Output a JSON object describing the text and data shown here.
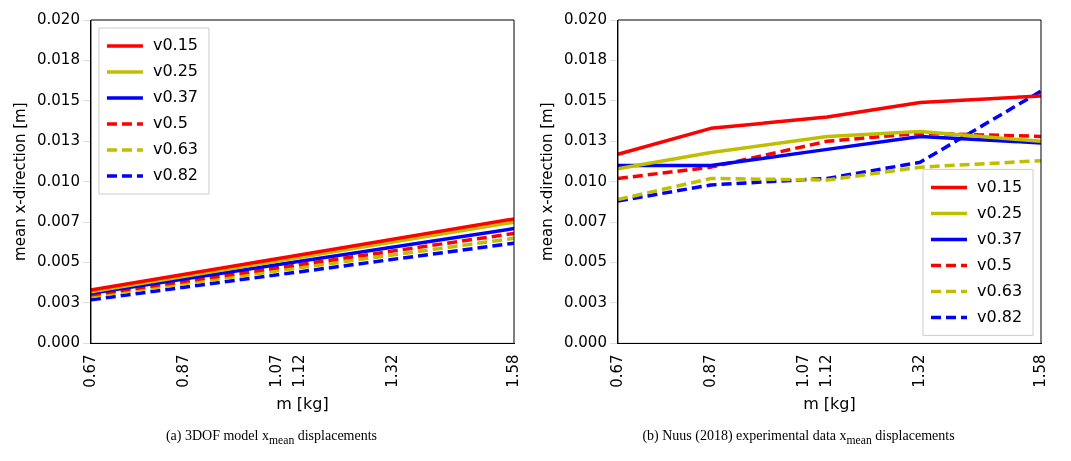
{
  "chart_data": [
    {
      "type": "line",
      "xlabel": "m [kg]",
      "ylabel": "mean x-direction [m]",
      "annotations": [
        "(a) 3DOF model x$_{mean}$ displacements"
      ],
      "x": [
        0.67,
        1.58
      ],
      "xlim": [
        0.67,
        1.58
      ],
      "xticks": [
        0.67,
        0.87,
        1.07,
        1.12,
        1.32,
        1.58
      ],
      "ylim": [
        0,
        0.02
      ],
      "yticks": [
        {
          "value": 0,
          "label": "0.000"
        },
        {
          "value": 0.0025,
          "label": "0.003"
        },
        {
          "value": 0.005,
          "label": "0.005"
        },
        {
          "value": 0.0075,
          "label": "0.007"
        },
        {
          "value": 0.01,
          "label": "0.010"
        },
        {
          "value": 0.0125,
          "label": "0.013"
        },
        {
          "value": 0.015,
          "label": "0.015"
        },
        {
          "value": 0.0175,
          "label": "0.018"
        },
        {
          "value": 0.02,
          "label": "0.020"
        }
      ],
      "legend": "top left",
      "grid": false,
      "series": [
        {
          "name": "v0.15",
          "color": "#ff0000",
          "line_style": "solid",
          "values": [
            0.0033,
            0.0077
          ]
        },
        {
          "name": "v0.25",
          "color": "#bfbf00",
          "line_style": "solid",
          "values": [
            0.0032,
            0.0075
          ]
        },
        {
          "name": "v0.37",
          "color": "#0000ff",
          "line_style": "solid",
          "values": [
            0.0031,
            0.0071
          ]
        },
        {
          "name": "v0.5",
          "color": "#ff0000",
          "line_style": "dashed",
          "values": [
            0.003,
            0.0068
          ]
        },
        {
          "name": "v0.63",
          "color": "#bfbf00",
          "line_style": "dashed",
          "values": [
            0.0029,
            0.0065
          ]
        },
        {
          "name": "v0.82",
          "color": "#0000ff",
          "line_style": "dashed",
          "values": [
            0.0027,
            0.0062
          ]
        }
      ]
    },
    {
      "type": "line",
      "xlabel": "m [kg]",
      "ylabel": "mean x-direction [m]",
      "annotations": [
        "(b) Nuus (2018) experimental data x$_{mean}$ displacements"
      ],
      "x": [
        0.67,
        0.87,
        1.12,
        1.32,
        1.58
      ],
      "xlim": [
        0.67,
        1.58
      ],
      "xticks": [
        0.67,
        0.87,
        1.07,
        1.12,
        1.32,
        1.58
      ],
      "ylim": [
        0,
        0.02
      ],
      "yticks": [
        {
          "value": 0,
          "label": "0.000"
        },
        {
          "value": 0.0025,
          "label": "0.003"
        },
        {
          "value": 0.005,
          "label": "0.005"
        },
        {
          "value": 0.0075,
          "label": "0.007"
        },
        {
          "value": 0.01,
          "label": "0.010"
        },
        {
          "value": 0.0125,
          "label": "0.013"
        },
        {
          "value": 0.015,
          "label": "0.015"
        },
        {
          "value": 0.0175,
          "label": "0.018"
        },
        {
          "value": 0.02,
          "label": "0.020"
        }
      ],
      "legend": "bottom right",
      "grid": false,
      "series": [
        {
          "name": "v0.15",
          "color": "#ff0000",
          "line_style": "solid",
          "values": [
            0.0117,
            0.0133,
            0.014,
            0.0149,
            0.0153
          ]
        },
        {
          "name": "v0.25",
          "color": "#bfbf00",
          "line_style": "solid",
          "values": [
            0.0108,
            0.0118,
            0.0128,
            0.0131,
            0.0125
          ]
        },
        {
          "name": "v0.37",
          "color": "#0000ff",
          "line_style": "solid",
          "values": [
            0.011,
            0.011,
            0.012,
            0.0128,
            0.0124
          ]
        },
        {
          "name": "v0.5",
          "color": "#ff0000",
          "line_style": "dashed",
          "values": [
            0.0102,
            0.0109,
            0.0125,
            0.013,
            0.0128
          ]
        },
        {
          "name": "v0.63",
          "color": "#bfbf00",
          "line_style": "dashed",
          "values": [
            0.0089,
            0.0102,
            0.0101,
            0.0109,
            0.0113
          ]
        },
        {
          "name": "v0.82",
          "color": "#0000ff",
          "line_style": "dashed",
          "values": [
            0.0088,
            0.0098,
            0.0102,
            0.0112,
            0.0156
          ]
        }
      ]
    }
  ]
}
